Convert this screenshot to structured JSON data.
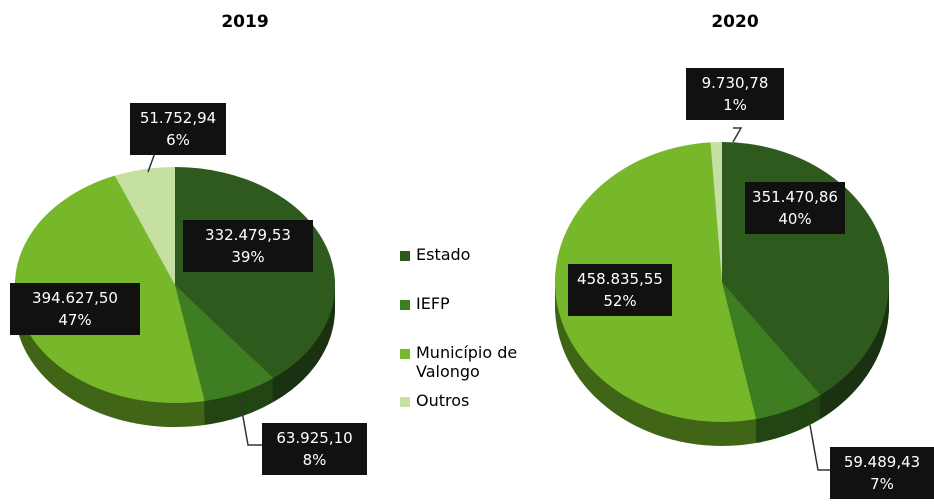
{
  "chart_data": [
    {
      "type": "pie",
      "title": "2019",
      "categories": [
        "Estado",
        "IEFP",
        "Município de Valongo",
        "Outros"
      ],
      "values": [
        332479.53,
        63925.1,
        394627.5,
        51752.94
      ],
      "value_labels": [
        "332.479,53",
        "63.925,10",
        "394.627,50",
        "51.752,94"
      ],
      "percents": [
        39,
        8,
        47,
        6
      ],
      "percent_labels": [
        "39%",
        "8%",
        "47%",
        "6%"
      ],
      "colors": [
        "#2f5a1e",
        "#3f7d22",
        "#76b82a",
        "#c5e0a0"
      ]
    },
    {
      "type": "pie",
      "title": "2020",
      "categories": [
        "Estado",
        "IEFP",
        "Município de Valongo",
        "Outros"
      ],
      "values": [
        351470.86,
        59489.43,
        458835.55,
        9730.78
      ],
      "value_labels": [
        "351.470,86",
        "59.489,43",
        "458.835,55",
        "9.730,78"
      ],
      "percents": [
        40,
        7,
        52,
        1
      ],
      "percent_labels": [
        "40%",
        "7%",
        "52%",
        "1%"
      ],
      "colors": [
        "#2f5a1e",
        "#3f7d22",
        "#76b82a",
        "#c5e0a0"
      ]
    }
  ]
}
